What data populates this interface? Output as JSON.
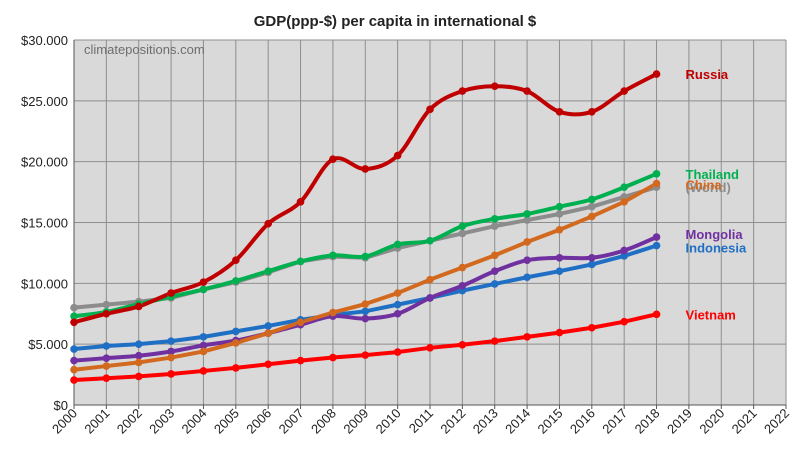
{
  "chart_data": {
    "type": "line",
    "title": "GDP(ppp-$) per capita in international $",
    "watermark": "climatepositions.com",
    "xlabel": "",
    "ylabel": "",
    "x": [
      2000,
      2001,
      2002,
      2003,
      2004,
      2005,
      2006,
      2007,
      2008,
      2009,
      2010,
      2011,
      2012,
      2013,
      2014,
      2015,
      2016,
      2017,
      2018
    ],
    "x_ticks": [
      "2000",
      "2001",
      "2002",
      "2003",
      "2004",
      "2005",
      "2006",
      "2007",
      "2008",
      "2009",
      "2010",
      "2011",
      "2012",
      "2013",
      "2014",
      "2015",
      "2016",
      "2017",
      "2018",
      "2019",
      "2020",
      "2021",
      "2022"
    ],
    "xlim": [
      2000,
      2022
    ],
    "ylim": [
      0,
      30000
    ],
    "y_ticks": [
      {
        "value": 0,
        "label": "$0"
      },
      {
        "value": 5000,
        "label": "$5.000"
      },
      {
        "value": 10000,
        "label": "$10.000"
      },
      {
        "value": 15000,
        "label": "$15.000"
      },
      {
        "value": 20000,
        "label": "$20.000"
      },
      {
        "value": 25000,
        "label": "$25.000"
      },
      {
        "value": 30000,
        "label": "$30.000"
      }
    ],
    "grid": true,
    "background": "#d9d9d9",
    "series": [
      {
        "name": "(World)",
        "color": "#8c8c8c",
        "smooth": false,
        "label_dy": 0,
        "values": [
          8000,
          8250,
          8500,
          8800,
          9500,
          10100,
          10900,
          11800,
          12200,
          12100,
          12900,
          13500,
          14100,
          14700,
          15200,
          15700,
          16300,
          17100,
          17900
        ]
      },
      {
        "name": "Vietnam",
        "color": "#ff0000",
        "smooth": false,
        "label_dy": 0,
        "values": [
          2050,
          2200,
          2350,
          2550,
          2800,
          3050,
          3350,
          3650,
          3900,
          4100,
          4350,
          4700,
          4950,
          5250,
          5600,
          5950,
          6350,
          6850,
          7450
        ]
      },
      {
        "name": "Indonesia",
        "color": "#1f6fc4",
        "smooth": false,
        "label_dy": 2,
        "values": [
          4600,
          4850,
          5000,
          5250,
          5600,
          6050,
          6500,
          7000,
          7400,
          7700,
          8250,
          8800,
          9400,
          9950,
          10500,
          11000,
          11550,
          12250,
          13100
        ]
      },
      {
        "name": "Mongolia",
        "color": "#7030a0",
        "smooth": true,
        "label_dy": -3,
        "values": [
          3650,
          3850,
          4050,
          4400,
          4900,
          5300,
          5900,
          6600,
          7300,
          7100,
          7500,
          8800,
          9800,
          11000,
          11900,
          12100,
          12100,
          12700,
          13800
        ]
      },
      {
        "name": "China",
        "color": "#d2691e",
        "smooth": false,
        "label_dy": 1,
        "values": [
          2900,
          3200,
          3500,
          3900,
          4400,
          5100,
          5900,
          6800,
          7600,
          8300,
          9200,
          10300,
          11300,
          12300,
          13400,
          14400,
          15500,
          16700,
          18200
        ]
      },
      {
        "name": "Thailand",
        "color": "#00b050",
        "smooth": true,
        "label_dy": 0,
        "values": [
          7300,
          7650,
          8300,
          8900,
          9500,
          10200,
          11000,
          11800,
          12300,
          12200,
          13200,
          13500,
          14700,
          15300,
          15700,
          16300,
          16900,
          17900,
          19000
        ]
      },
      {
        "name": "Russia",
        "color": "#c00000",
        "smooth": true,
        "label_dy": 0,
        "values": [
          6800,
          7500,
          8100,
          9200,
          10100,
          11900,
          14900,
          16700,
          20200,
          19400,
          20500,
          24300,
          25800,
          26200,
          25800,
          24100,
          24100,
          25800,
          27200
        ]
      }
    ]
  }
}
